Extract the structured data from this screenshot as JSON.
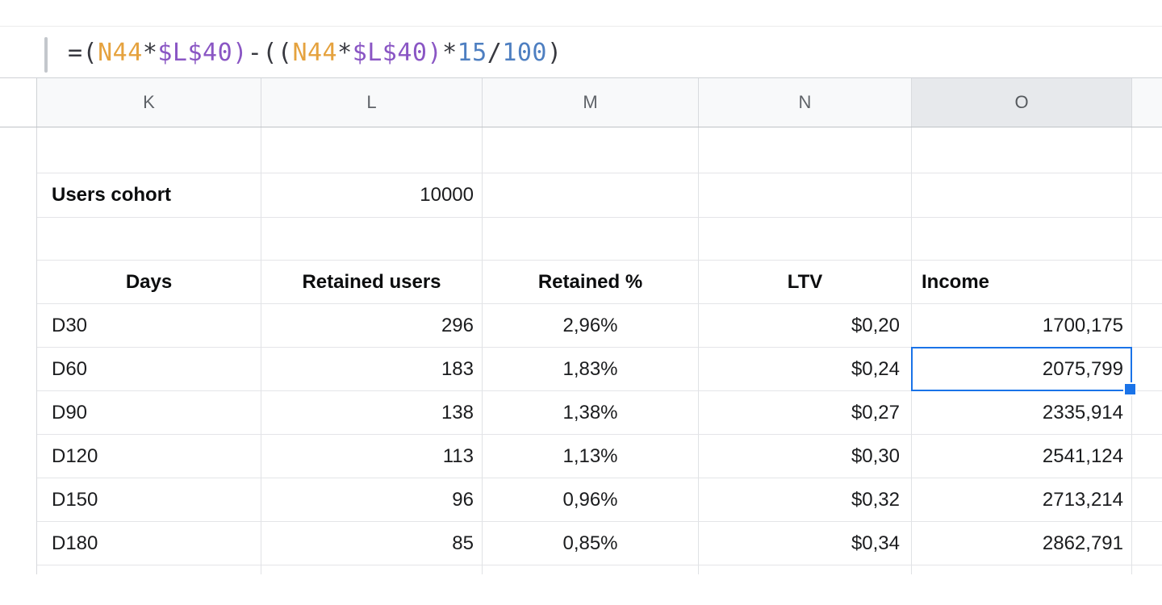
{
  "formula": {
    "full": "=(N44*$L$40)-((N44*$L$40)*15/100)",
    "tokens": [
      {
        "t": "=(",
        "role": "default"
      },
      {
        "t": "N44",
        "role": "cell-ref-orange"
      },
      {
        "t": "*",
        "role": "default"
      },
      {
        "t": "$L$40",
        "role": "cell-ref-purple"
      },
      {
        "t": ")",
        "role": "cell-ref-purple"
      },
      {
        "t": "-",
        "role": "default"
      },
      {
        "t": "((",
        "role": "default"
      },
      {
        "t": "N44",
        "role": "cell-ref-orange"
      },
      {
        "t": "*",
        "role": "default"
      },
      {
        "t": "$L$40",
        "role": "cell-ref-purple"
      },
      {
        "t": ")",
        "role": "cell-ref-purple"
      },
      {
        "t": "*",
        "role": "default"
      },
      {
        "t": "15",
        "role": "number-blue"
      },
      {
        "t": "/",
        "role": "default"
      },
      {
        "t": "100",
        "role": "number-blue"
      },
      {
        "t": ")",
        "role": "default"
      }
    ],
    "colors": {
      "default": "#37383f",
      "cell-ref-orange": "#e5a23e",
      "cell-ref-purple": "#8a56c4",
      "number-blue": "#4e7fc1"
    }
  },
  "grid": {
    "column_letters": [
      "K",
      "L",
      "M",
      "N",
      "O"
    ],
    "selected_column": "O",
    "users_cohort": {
      "label": "Users cohort",
      "value": "10000"
    },
    "table": {
      "headers": {
        "days": "Days",
        "retained_users": "Retained users",
        "retained_pct": "Retained %",
        "ltv": "LTV",
        "income": "Income"
      },
      "rows": [
        {
          "day": "D30",
          "retained_users": "296",
          "retained_pct": "2,96%",
          "ltv": "$0,20",
          "income": "1700,175"
        },
        {
          "day": "D60",
          "retained_users": "183",
          "retained_pct": "1,83%",
          "ltv": "$0,24",
          "income": "2075,799"
        },
        {
          "day": "D90",
          "retained_users": "138",
          "retained_pct": "1,38%",
          "ltv": "$0,27",
          "income": "2335,914"
        },
        {
          "day": "D120",
          "retained_users": "113",
          "retained_pct": "1,13%",
          "ltv": "$0,30",
          "income": "2541,124"
        },
        {
          "day": "D150",
          "retained_users": "96",
          "retained_pct": "0,96%",
          "ltv": "$0,32",
          "income": "2713,214"
        },
        {
          "day": "D180",
          "retained_users": "85",
          "retained_pct": "0,85%",
          "ltv": "$0,34",
          "income": "2862,791"
        }
      ]
    },
    "selection": {
      "selected_value": "2075,799",
      "accent_color": "#1a73e8"
    }
  }
}
